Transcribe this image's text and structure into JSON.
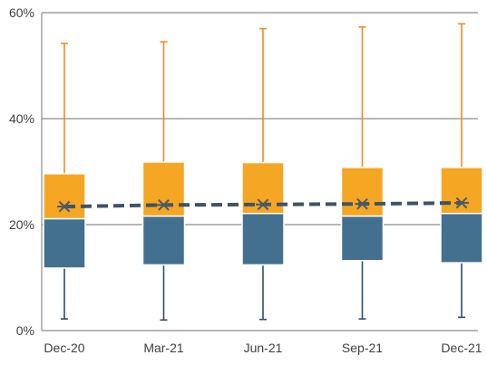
{
  "chart_data": {
    "type": "box",
    "categories": [
      "Dec-20",
      "Mar-21",
      "Jun-21",
      "Sep-21",
      "Dec-21"
    ],
    "y_ticks": [
      "0%",
      "20%",
      "40%",
      "60%"
    ],
    "ylim": [
      0,
      0.6
    ],
    "grid": true,
    "legend": "none",
    "boxes": [
      {
        "min": 0.022,
        "q1": 0.118,
        "median": 0.211,
        "q3": 0.296,
        "max": 0.542,
        "mean": 0.234
      },
      {
        "min": 0.02,
        "q1": 0.124,
        "median": 0.216,
        "q3": 0.318,
        "max": 0.545,
        "mean": 0.237
      },
      {
        "min": 0.021,
        "q1": 0.124,
        "median": 0.221,
        "q3": 0.317,
        "max": 0.57,
        "mean": 0.238
      },
      {
        "min": 0.022,
        "q1": 0.132,
        "median": 0.216,
        "q3": 0.308,
        "max": 0.573,
        "mean": 0.239
      },
      {
        "min": 0.025,
        "q1": 0.128,
        "median": 0.221,
        "q3": 0.308,
        "max": 0.579,
        "mean": 0.241
      }
    ],
    "colors": {
      "upper_box": "#F5A623",
      "lower_box": "#44708F",
      "upper_whisker": "#F08A24",
      "lower_whisker": "#2E4E6B",
      "mean_line": "#3E5366",
      "mean_marker": "#4A5A6A",
      "grid": "#8C8C8C",
      "axis": "#8C8C8C"
    }
  }
}
